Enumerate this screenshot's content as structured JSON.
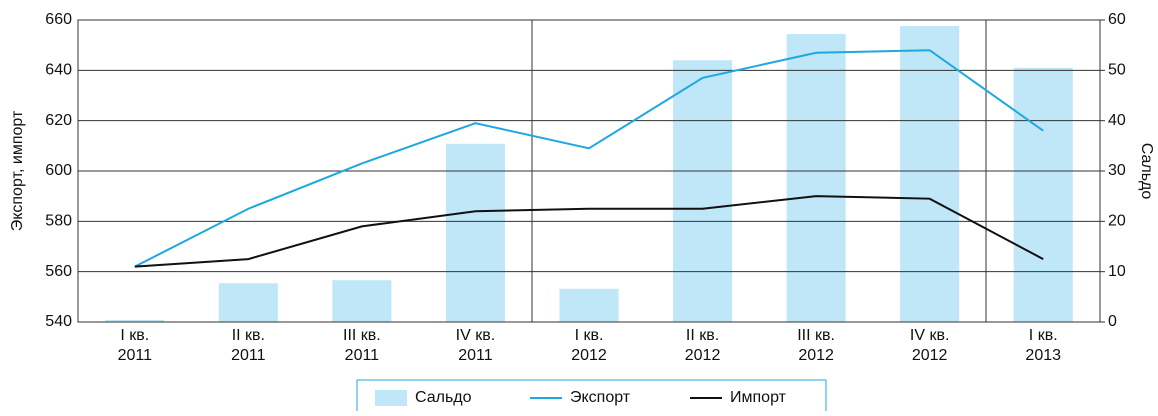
{
  "chart_data": {
    "type": "bar_line",
    "categories": [
      "I кв.\n2011",
      "II кв.\n2011",
      "III кв.\n2011",
      "IV кв.\n2011",
      "I кв.\n2012",
      "II кв.\n2012",
      "III кв.\n2012",
      "IV кв.\n2012",
      "I кв.\n2013"
    ],
    "ylabel": "Экспорт, импорт",
    "y2label": "Сальдо",
    "ylim": [
      540,
      660
    ],
    "yticks": [
      540,
      560,
      580,
      600,
      620,
      640,
      660
    ],
    "y2lim": [
      0,
      60
    ],
    "y2ticks": [
      0,
      10,
      20,
      30,
      40,
      50,
      60
    ],
    "grid": true,
    "legend": "bottom",
    "series": [
      {
        "name": "Сальдо",
        "type": "bar",
        "axis": "y2",
        "color": "#bfe7f7",
        "values": [
          0.4,
          7.7,
          8.3,
          35.4,
          6.6,
          52,
          57.2,
          58.8,
          50.5
        ]
      },
      {
        "name": "Экспорт",
        "type": "line",
        "color": "#1ea8e0",
        "values": [
          562,
          585,
          603,
          619,
          609,
          637,
          647,
          648,
          616
        ]
      },
      {
        "name": "Импорт",
        "type": "line",
        "color": "#111111",
        "values": [
          562,
          565,
          578,
          584,
          585,
          585,
          590,
          589,
          565
        ]
      }
    ]
  }
}
